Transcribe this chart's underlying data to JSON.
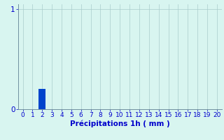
{
  "bar_x": 2,
  "bar_height": 0.2,
  "bar_color": "#0044cc",
  "bar_width": 0.7,
  "background_color": "#d8f5f0",
  "grid_color": "#aacccc",
  "axis_color": "#7090a0",
  "text_color": "#0000cc",
  "xlabel": "Précipitations 1h ( mm )",
  "xlim": [
    -0.5,
    20.5
  ],
  "ylim": [
    0,
    1.05
  ],
  "yticks": [
    0,
    1
  ],
  "xticks": [
    0,
    1,
    2,
    3,
    4,
    5,
    6,
    7,
    8,
    9,
    10,
    11,
    12,
    13,
    14,
    15,
    16,
    17,
    18,
    19,
    20
  ],
  "xlabel_fontsize": 7.5,
  "tick_fontsize": 6.5,
  "ytick_fontsize": 7.5
}
